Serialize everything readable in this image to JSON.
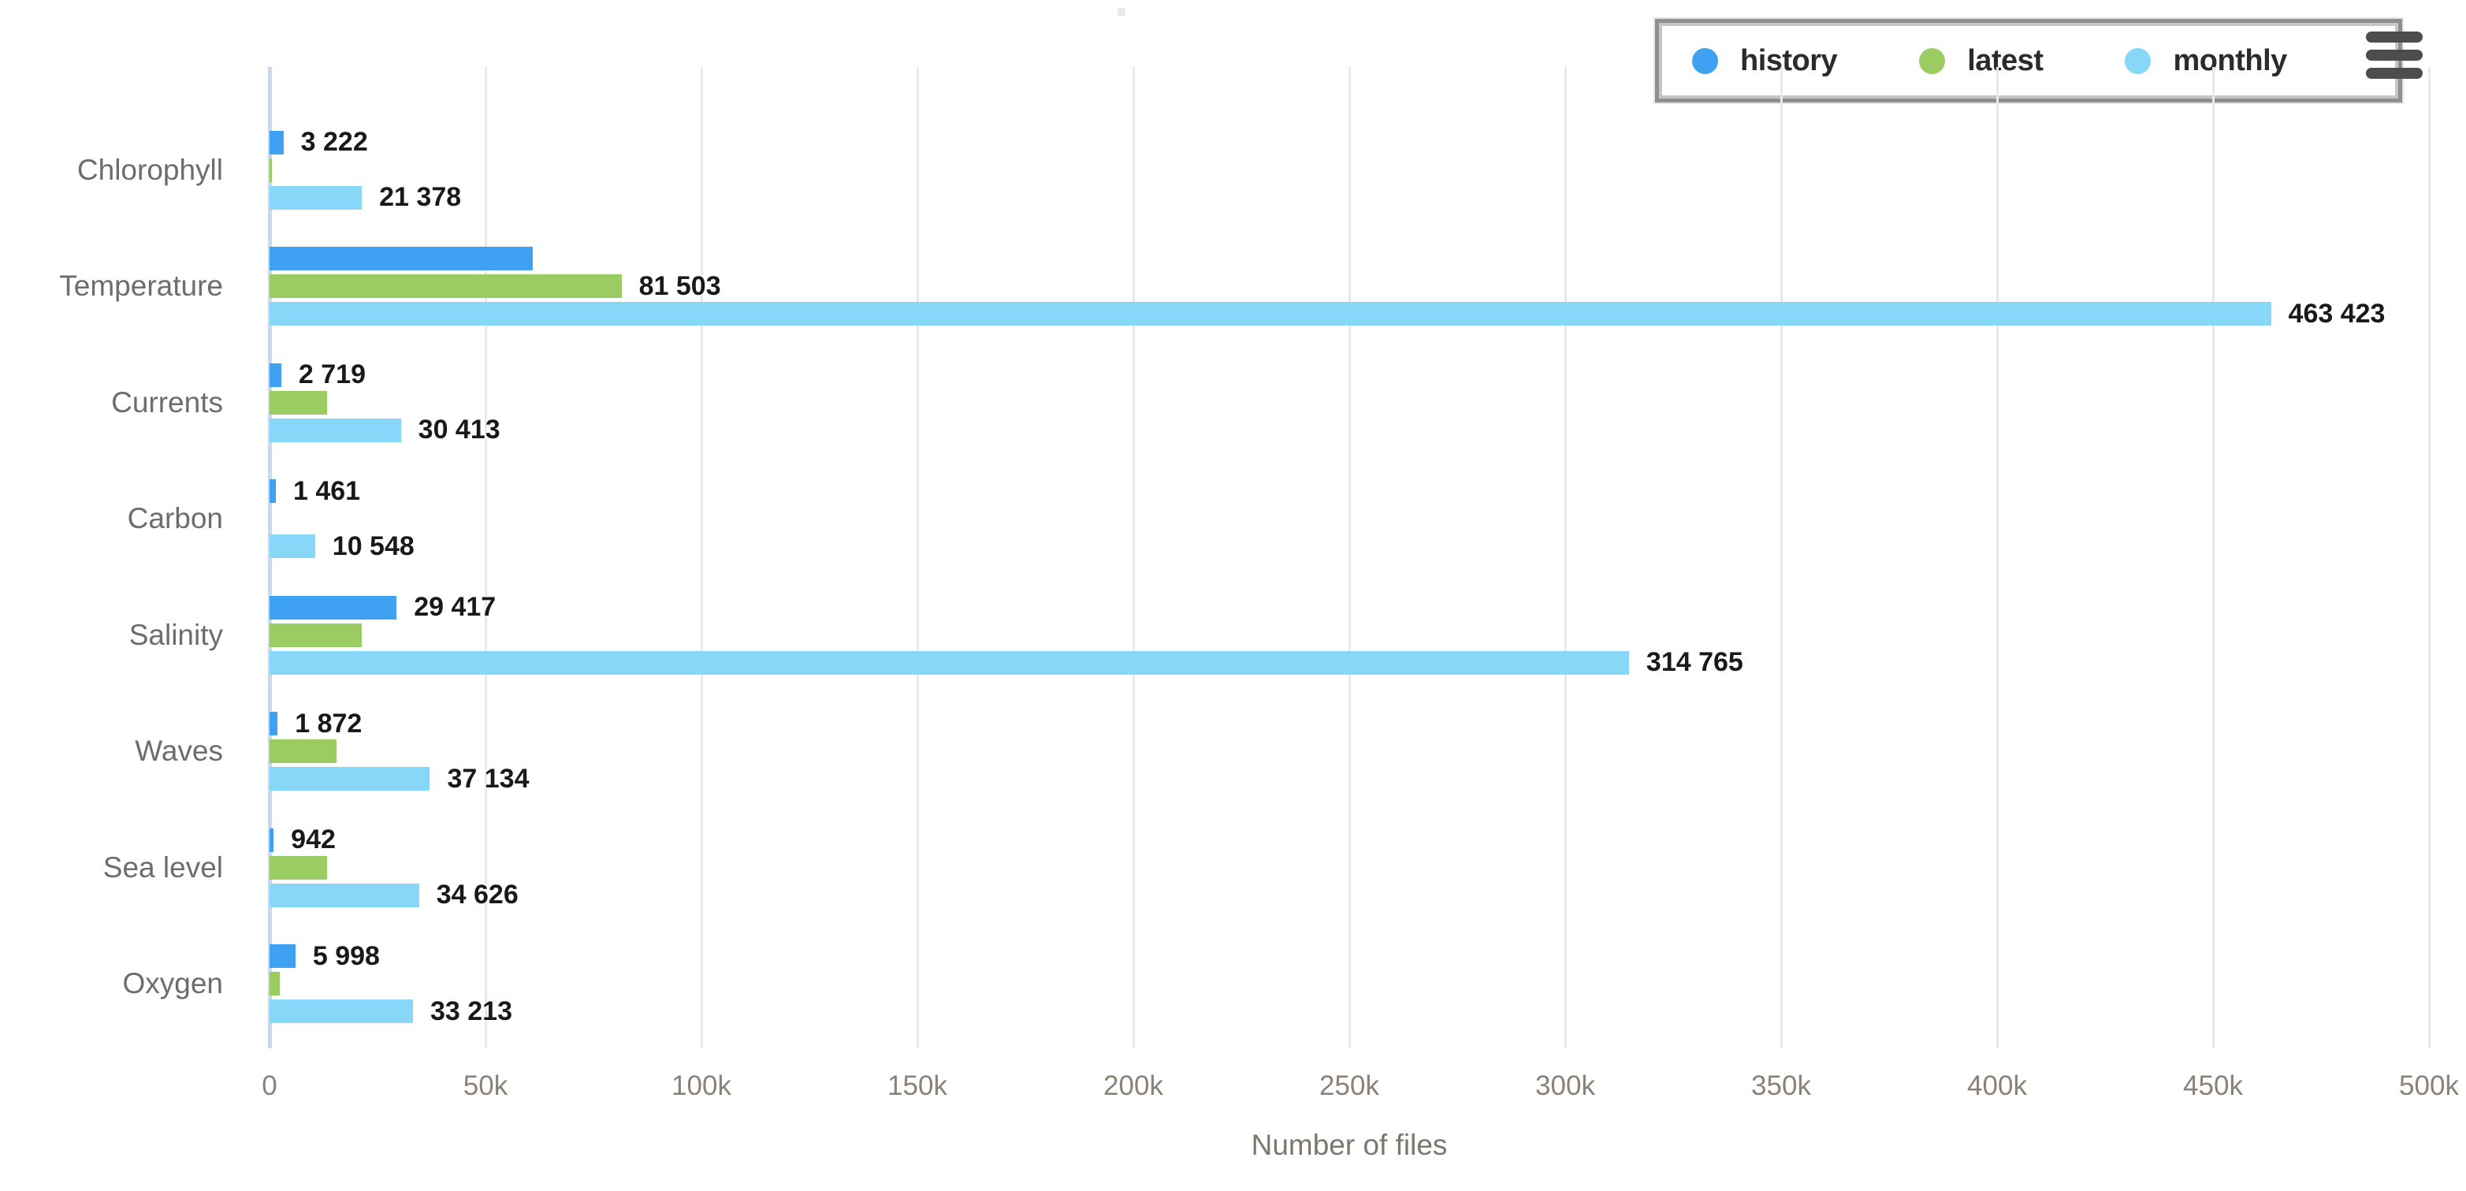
{
  "chart_data": {
    "type": "bar",
    "orientation": "horizontal",
    "title": "",
    "xlabel": "Number of files",
    "ylabel": "",
    "xlim": [
      0,
      500000
    ],
    "grid": "vertical-only",
    "legend_position": "top-right",
    "axis_tick_labels": [
      "0",
      "50k",
      "100k",
      "150k",
      "200k",
      "250k",
      "300k",
      "350k",
      "400k",
      "450k",
      "500k"
    ],
    "axis_tick_values": [
      0,
      50000,
      100000,
      150000,
      200000,
      250000,
      300000,
      350000,
      400000,
      450000,
      500000
    ],
    "categories": [
      "Chlorophyll",
      "Temperature",
      "Currents",
      "Carbon",
      "Salinity",
      "Waves",
      "Sea level",
      "Oxygen"
    ],
    "series": [
      {
        "name": "history",
        "color": "#3fa1f1",
        "values": [
          3222,
          61000,
          2719,
          1461,
          29417,
          1872,
          942,
          5998
        ],
        "labels": [
          "3 222",
          null,
          "2 719",
          "1 461",
          "29 417",
          "1 872",
          "942",
          "5 998"
        ]
      },
      {
        "name": "latest",
        "color": "#9bcb63",
        "values": [
          550,
          81503,
          13300,
          0,
          21300,
          15500,
          13300,
          2300
        ],
        "labels": [
          null,
          "81 503",
          null,
          null,
          null,
          null,
          null,
          null
        ]
      },
      {
        "name": "monthly",
        "color": "#87d7f8",
        "values": [
          21378,
          463423,
          30413,
          10548,
          314765,
          37134,
          34626,
          33213
        ],
        "labels": [
          "21 378",
          "463 423",
          "30 413",
          "10 548",
          "314 765",
          "37 134",
          "34 626",
          "33 213"
        ]
      }
    ]
  }
}
